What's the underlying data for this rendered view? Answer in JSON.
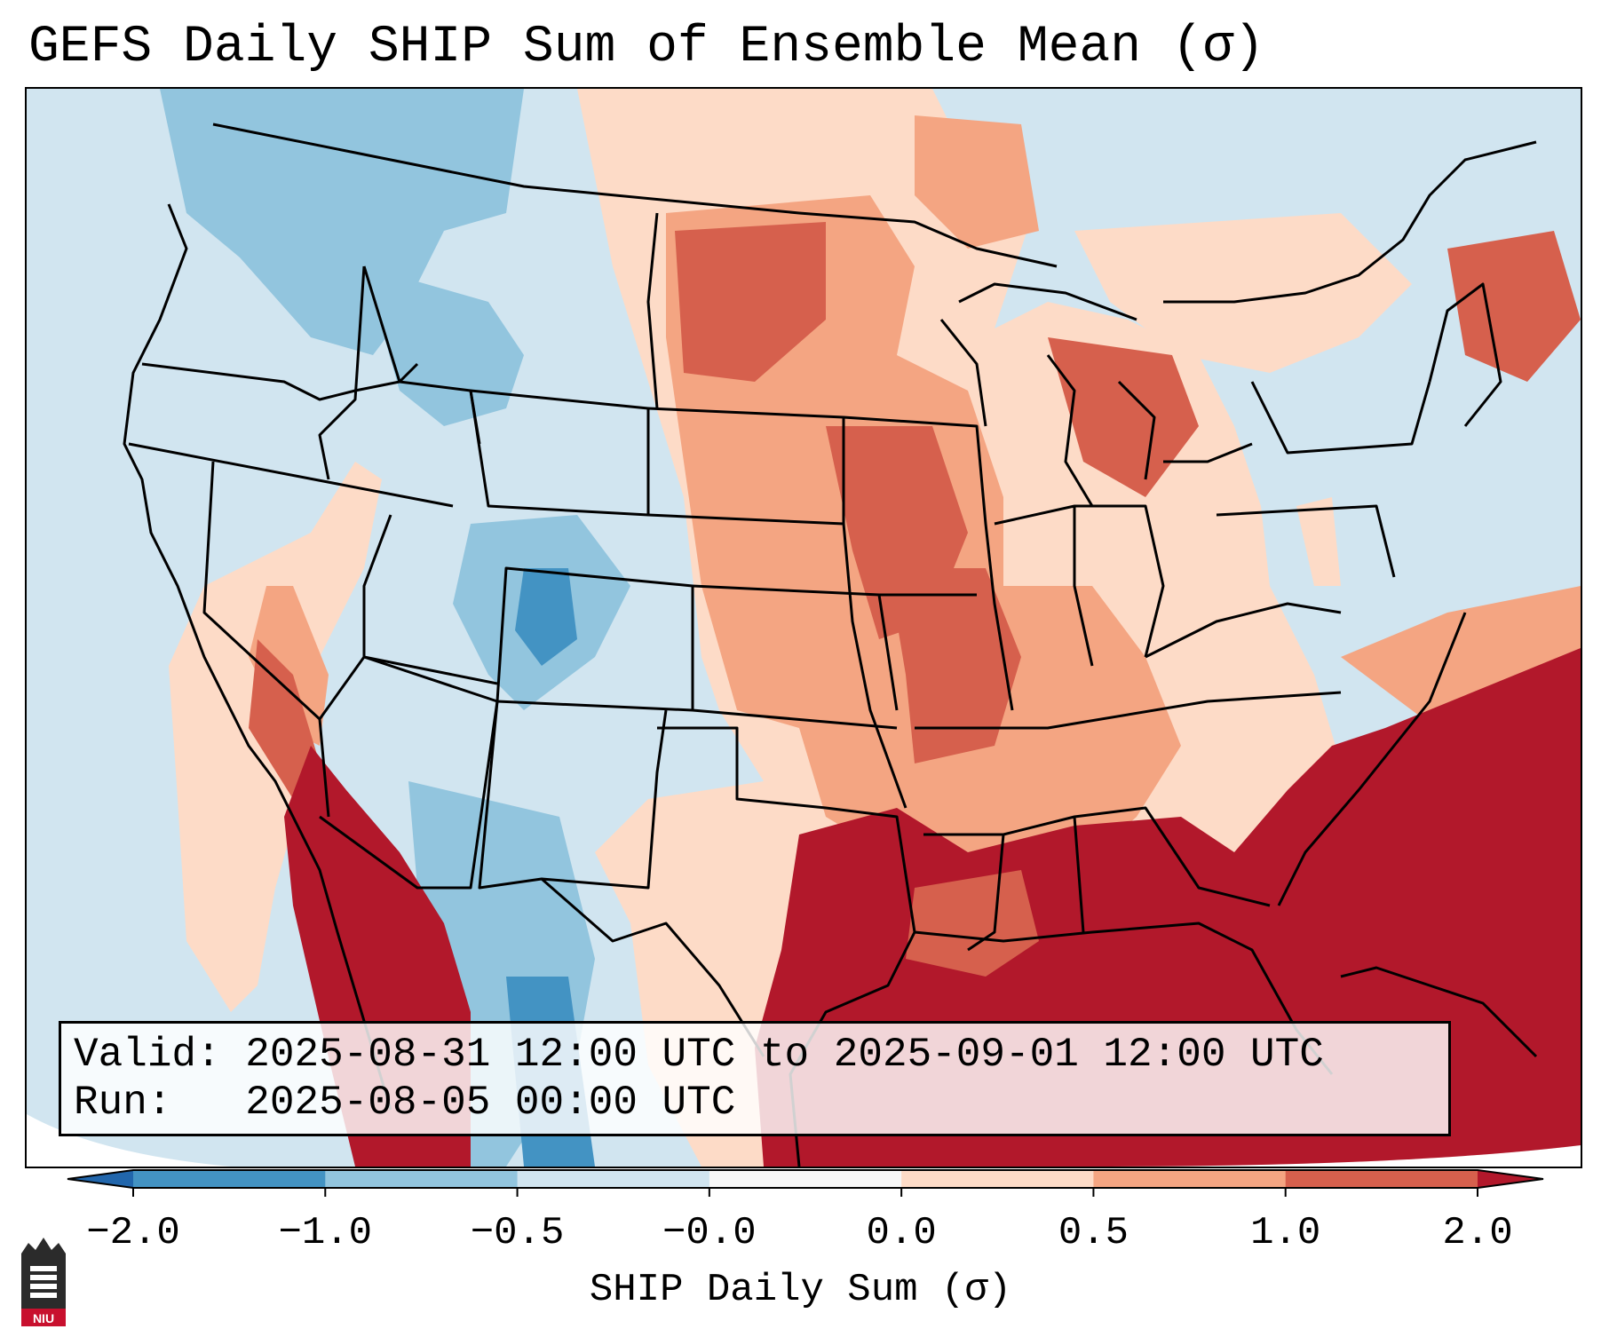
{
  "title": "GEFS Daily SHIP Sum of Ensemble Mean (σ)",
  "info": {
    "valid_label": "Valid:",
    "valid_value": "2025-08-31 12:00 UTC to 2025-09-01 12:00 UTC",
    "run_label": "Run:",
    "run_value": "2025-08-05 00:00 UTC"
  },
  "colorbar": {
    "label": "SHIP Daily Sum (σ)",
    "ticks": [
      "−2.0",
      "−1.0",
      "−0.5",
      "−0.0",
      "0.0",
      "0.5",
      "1.0",
      "2.0"
    ],
    "bins": [
      {
        "from": "-2.0",
        "to": "-1.0",
        "color": "#4393c3"
      },
      {
        "from": "-1.0",
        "to": "-0.5",
        "color": "#92c5de"
      },
      {
        "from": "-0.5",
        "to": "-0.0",
        "color": "#d1e5f0"
      },
      {
        "from": "-0.0",
        "to": "0.0",
        "color": "#f7f7f7"
      },
      {
        "from": "0.0",
        "to": "0.5",
        "color": "#fddbc7"
      },
      {
        "from": "0.5",
        "to": "1.0",
        "color": "#f4a582"
      },
      {
        "from": "1.0",
        "to": "2.0",
        "color": "#d6604d"
      }
    ],
    "under_color": "#2166ac",
    "over_color": "#b2182b"
  },
  "logo": {
    "text": "NIU"
  }
}
